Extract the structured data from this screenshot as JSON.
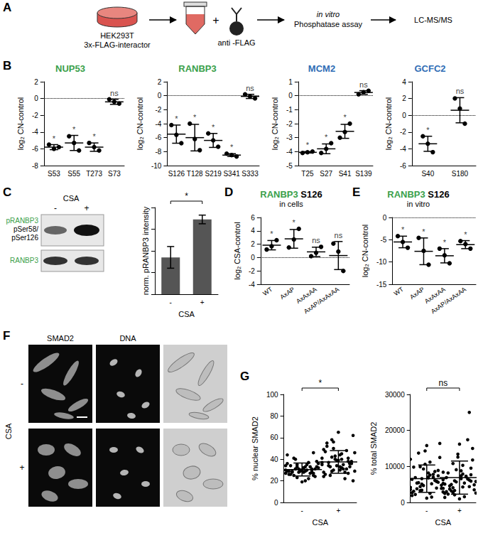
{
  "panel_labels": [
    "A",
    "B",
    "C",
    "D",
    "E",
    "F",
    "G"
  ],
  "diagram": {
    "cell_line": "HEK293T",
    "construct": "3x-FLAG-interactor",
    "plus": "+",
    "antibody": "anti -FLAG",
    "steps": [
      [
        "in vitro",
        "Phosphatase assay"
      ],
      [
        "LC-MS/MS"
      ]
    ]
  },
  "blot": {
    "treatment": "CSA",
    "lanes": [
      "-",
      "+"
    ],
    "bands": [
      [
        "pRANBP3",
        "pSer58/",
        "pSer126"
      ],
      [
        "RANBP3"
      ]
    ],
    "label_color": "#3aa04a"
  },
  "micrographs": {
    "treatment": "CSA",
    "conditions": [
      "-",
      "+"
    ],
    "channels": [
      "SMAD2",
      "DNA"
    ]
  },
  "chart_data": [
    {
      "type": "scatter",
      "title": "NUP53",
      "color": "#3aa04a",
      "y_label": "log₂ CN-control",
      "categories": [
        "S53",
        "S55",
        "T273",
        "S73"
      ],
      "points": [
        [
          -5.5,
          -6.0,
          -5.8
        ],
        [
          -4.5,
          -5.3,
          -6.2
        ],
        [
          -5.3,
          -5.8,
          -6.2
        ],
        [
          -0.1,
          -0.4,
          -0.6
        ]
      ],
      "means": [
        -5.8,
        -5.3,
        -5.8,
        -0.4
      ],
      "errors": [
        0.3,
        0.9,
        0.5,
        0.3
      ],
      "annotations": [
        "*",
        "*",
        "*",
        "ns"
      ],
      "reference_line": 0,
      "line_style": "dotted",
      "ylim": [
        -8,
        2
      ],
      "yticks": [
        -8,
        -6,
        -4,
        -2,
        0,
        2
      ]
    },
    {
      "type": "scatter",
      "title": "RANBP3",
      "color": "#3aa04a",
      "y_label": "log₂ CN-control",
      "categories": [
        "S126",
        "T128",
        "S219",
        "S341",
        "S333"
      ],
      "points": [
        [
          -4.2,
          -5.6,
          -6.8
        ],
        [
          -4.0,
          -6.2,
          -7.8
        ],
        [
          -5.4,
          -6.4,
          -7.3
        ],
        [
          -8.3,
          -8.5,
          -8.7
        ],
        [
          0.2,
          -0.1,
          -0.4
        ]
      ],
      "means": [
        -5.5,
        -6.0,
        -6.4,
        -8.5,
        -0.1
      ],
      "errors": [
        1.3,
        1.9,
        1.0,
        0.2,
        0.3
      ],
      "annotations": [
        "*",
        "*",
        "*",
        "*",
        "ns"
      ],
      "reference_line": 0,
      "line_style": "dotted",
      "ylim": [
        -10,
        2
      ],
      "yticks": [
        -10,
        -8,
        -6,
        -4,
        -2,
        0,
        2
      ]
    },
    {
      "type": "scatter",
      "title": "MCM2",
      "color": "#2f6db5",
      "y_label": "log₂ CN-control",
      "categories": [
        "T25",
        "S27",
        "S41",
        "S139"
      ],
      "points": [
        [
          -4.1,
          -4.05,
          -4.0
        ],
        [
          -4.1,
          -3.8,
          -3.4
        ],
        [
          -3.0,
          -2.6,
          -2.0
        ],
        [
          0.1,
          0.25,
          0.35
        ]
      ],
      "means": [
        -4.05,
        -3.8,
        -2.55,
        0.23
      ],
      "errors": [
        0.05,
        0.35,
        0.5,
        0.13
      ],
      "annotations": [
        "*",
        "*",
        "*",
        "ns"
      ],
      "reference_line": 0,
      "line_style": "dotted",
      "ylim": [
        -5,
        1
      ],
      "yticks": [
        -5,
        -4,
        -3,
        -2,
        -1,
        0,
        1
      ]
    },
    {
      "type": "scatter",
      "title": "GCFC2",
      "color": "#2f6db5",
      "y_label": "log₂ CN-control",
      "categories": [
        "S40",
        "S180"
      ],
      "points": [
        [
          -2.5,
          -3.4,
          -4.4
        ],
        [
          2.0,
          0.8,
          -1.0
        ]
      ],
      "means": [
        -3.4,
        0.6
      ],
      "errors": [
        0.9,
        1.5
      ],
      "annotations": [
        "*",
        "ns"
      ],
      "reference_line": 0,
      "line_style": "dotted",
      "ylim": [
        -6,
        4
      ],
      "yticks": [
        -6,
        -4,
        -2,
        0,
        2,
        4
      ]
    },
    {
      "type": "bar",
      "categories": [
        "-",
        "+"
      ],
      "x_label": "CSA",
      "y_label": "norm. pRANBP3 intensity",
      "values": [
        17000,
        34500
      ],
      "errors": [
        5000,
        2000
      ],
      "color": "#555555",
      "ylim": [
        0,
        40000
      ],
      "tick_labels": "x",
      "annotations": [
        "*"
      ]
    },
    {
      "type": "scatter",
      "title": "RANBP3 S126",
      "subtitle": "in cells",
      "color": "#3aa04a",
      "y_label": "log₂ CSA-control",
      "categories": [
        "WT",
        "AxAP",
        "AxAxAA",
        "AxAP/AxAxAA"
      ],
      "points": [
        [
          1.2,
          1.7,
          2.6
        ],
        [
          1.5,
          2.7,
          4.3
        ],
        [
          0.2,
          0.7,
          1.6
        ],
        [
          2.1,
          0.9,
          -2.0
        ]
      ],
      "means": [
        1.85,
        2.8,
        0.85,
        0.3
      ],
      "errors": [
        0.7,
        1.4,
        0.7,
        2.1
      ],
      "annotations": [
        "*",
        "*",
        "ns",
        "ns"
      ],
      "reference_line": 0,
      "line_style": "dotted",
      "ylim": [
        -4,
        6
      ],
      "yticks": [
        -4,
        -2,
        0,
        2,
        4,
        6
      ]
    },
    {
      "type": "scatter",
      "title": "RANBP3 S126",
      "subtitle": "in vitro",
      "color": "#3aa04a",
      "y_label": "log₂ CN-control",
      "categories": [
        "WT",
        "AxAP",
        "AxAxAA",
        "AxAP/AxAxAA"
      ],
      "points": [
        [
          -4.2,
          -5.5,
          -6.8
        ],
        [
          -4.6,
          -7.5,
          -10.6
        ],
        [
          -7.0,
          -8.5,
          -10.3
        ],
        [
          -5.3,
          -6.0,
          -7.0
        ]
      ],
      "means": [
        -5.5,
        -7.6,
        -8.6,
        -6.1
      ],
      "errors": [
        1.3,
        3.0,
        1.6,
        0.9
      ],
      "annotations": [
        "*",
        "*",
        "*",
        "*"
      ],
      "reference_line": 0,
      "line_style": "dotted",
      "ylim": [
        -15,
        0
      ],
      "yticks": [
        -15,
        -10,
        -5,
        0
      ]
    },
    {
      "type": "scatter",
      "categories": [
        "-",
        "+"
      ],
      "x_label": "CSA",
      "y_label": "% nuclear SMAD2",
      "points": [
        [
          30,
          28,
          32,
          31,
          29,
          27,
          33,
          35,
          26,
          24,
          30,
          31,
          34,
          38,
          22,
          29,
          28,
          36,
          33,
          30,
          25,
          27,
          31,
          32,
          40,
          44,
          46,
          20,
          23,
          29,
          31,
          35,
          28,
          26,
          33,
          37,
          30,
          29,
          32,
          27,
          19,
          41,
          34,
          30,
          28,
          31,
          36,
          25,
          29,
          33
        ],
        [
          35,
          38,
          30,
          42,
          28,
          33,
          45,
          50,
          26,
          36,
          31,
          40,
          55,
          62,
          22,
          34,
          37,
          29,
          48,
          39,
          33,
          41,
          27,
          44,
          58,
          24,
          36,
          32,
          30,
          47,
          38,
          35,
          43,
          52,
          20,
          28,
          39,
          34,
          46,
          31,
          65,
          25,
          37,
          41,
          33,
          29,
          49,
          36,
          40,
          56
        ]
      ],
      "means": [
        30.5,
        37.5
      ],
      "errors": [
        6,
        10.5
      ],
      "annotations": [
        "*"
      ],
      "ylim": [
        0,
        100
      ],
      "yticks": [
        0,
        20,
        40,
        60,
        80,
        100
      ]
    },
    {
      "type": "scatter",
      "categories": [
        "-",
        "+"
      ],
      "x_label": "CSA",
      "y_label": "% total SMAD2",
      "points": [
        [
          4200,
          5800,
          7100,
          3300,
          6400,
          8900,
          2500,
          5100,
          9800,
          12500,
          1500,
          4700,
          6900,
          3900,
          7800,
          10600,
          5400,
          2900,
          6100,
          15800,
          13700,
          3600,
          5900,
          8200,
          4400,
          1900,
          7400,
          11200,
          6600,
          3100,
          16400,
          5200,
          9300,
          2200,
          4800,
          7000,
          14300,
          3800,
          6300,
          8600,
          1200,
          5500,
          12000,
          4000,
          6800,
          9900,
          2700,
          5600,
          7600,
          3400
        ],
        [
          3900,
          6200,
          7400,
          2800,
          5100,
          9500,
          4300,
          2100,
          6900,
          11800,
          1600,
          5700,
          8200,
          3500,
          7100,
          13400,
          4600,
          2600,
          6500,
          16200,
          3200,
          5300,
          25000,
          8800,
          4100,
          1400,
          7700,
          10300,
          6000,
          3000,
          15000,
          5400,
          9100,
          2300,
          4900,
          7300,
          12600,
          3700,
          5800,
          17400,
          1000,
          5000,
          8400,
          4400,
          6600,
          10800,
          2500,
          5900,
          7900,
          3300
        ]
      ],
      "means": [
        6600,
        6900
      ],
      "errors": [
        3800,
        4600
      ],
      "annotations": [
        "ns"
      ],
      "ylim": [
        0,
        30000
      ],
      "yticks": [
        0,
        10000,
        20000,
        30000
      ]
    }
  ]
}
